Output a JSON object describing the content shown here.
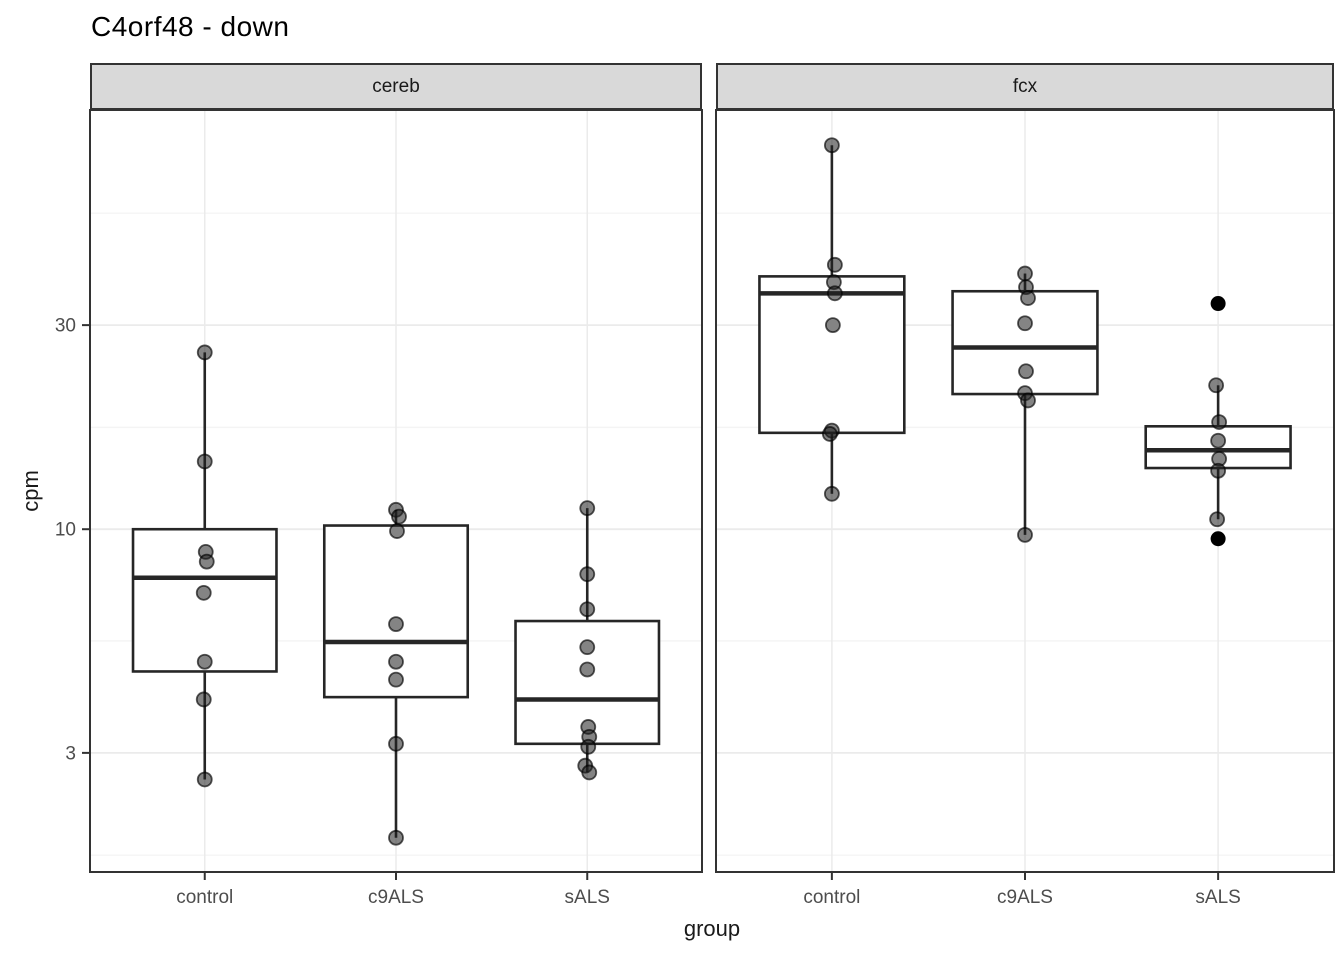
{
  "chart_data": {
    "type": "boxplot",
    "title": "C4orf48 - down",
    "xlabel": "group",
    "ylabel": "cpm",
    "y_scale": "log10",
    "y_domain": [
      1.58,
      95.5
    ],
    "y_major_ticks": [
      3,
      10,
      30
    ],
    "y_minor_gridlines": [
      1.73,
      5.48,
      17.3,
      54.8
    ],
    "categories": [
      "control",
      "c9ALS",
      "sALS"
    ],
    "grid": true,
    "legend": false,
    "facets": [
      {
        "label": "cereb",
        "groups": [
          {
            "category": "control",
            "box": {
              "q1": 4.65,
              "median": 7.7,
              "q3": 10.0,
              "whisker_low": 2.6,
              "whisker_high": 25.9
            },
            "points": [
              25.9,
              14.4,
              8.85,
              8.4,
              7.1,
              4.9,
              4.0,
              2.6
            ],
            "jitter_dx": [
              0,
              0,
              1,
              2,
              -1,
              0,
              -1,
              0
            ],
            "outliers": []
          },
          {
            "category": "c9ALS",
            "box": {
              "q1": 4.05,
              "median": 5.45,
              "q3": 10.2,
              "whisker_low": 1.9,
              "whisker_high": 11.1
            },
            "points": [
              11.1,
              10.7,
              9.9,
              6.0,
              4.9,
              4.45,
              3.15,
              1.9
            ],
            "jitter_dx": [
              0,
              3,
              1,
              0,
              0,
              0,
              0,
              0
            ],
            "outliers": []
          },
          {
            "category": "sALS",
            "box": {
              "q1": 3.15,
              "median": 4.0,
              "q3": 6.1,
              "whisker_low": 2.7,
              "whisker_high": 11.2
            },
            "points": [
              11.2,
              7.85,
              6.5,
              5.3,
              4.7,
              3.45,
              3.27,
              3.1,
              2.8,
              2.7
            ],
            "jitter_dx": [
              0,
              0,
              0,
              0,
              0,
              1,
              2,
              1,
              -2,
              2
            ],
            "outliers": []
          }
        ]
      },
      {
        "label": "fcx",
        "groups": [
          {
            "category": "control",
            "box": {
              "q1": 16.8,
              "median": 35.6,
              "q3": 39.0,
              "whisker_low": 12.1,
              "whisker_high": 79.0
            },
            "points": [
              79.0,
              41.5,
              37.8,
              35.6,
              30.0,
              17.0,
              16.7,
              12.1
            ],
            "jitter_dx": [
              0,
              3,
              2,
              3,
              1,
              0,
              -2,
              0
            ],
            "outliers": []
          },
          {
            "category": "c9ALS",
            "box": {
              "q1": 20.7,
              "median": 26.6,
              "q3": 36.0,
              "whisker_low": 9.7,
              "whisker_high": 39.6
            },
            "points": [
              39.6,
              36.8,
              34.7,
              30.3,
              23.4,
              20.8,
              20.0,
              9.7
            ],
            "jitter_dx": [
              0,
              1,
              3,
              0,
              1,
              0,
              3,
              0
            ],
            "outliers": []
          },
          {
            "category": "sALS",
            "box": {
              "q1": 13.9,
              "median": 15.3,
              "q3": 17.4,
              "whisker_low": 10.55,
              "whisker_high": 21.7
            },
            "points": [
              21.7,
              17.8,
              16.1,
              14.6,
              13.7,
              10.55
            ],
            "jitter_dx": [
              -2,
              1,
              0,
              1,
              0,
              -1
            ],
            "outliers": [
              33.7,
              9.5
            ]
          }
        ]
      }
    ],
    "colors": {
      "background": "#ffffff",
      "strip_bg": "#d9d9d9",
      "panel_border": "#333333",
      "grid_major": "#ebebeb",
      "grid_minor": "#f4f4f4",
      "box_stroke": "#262626",
      "box_fill": "#ffffff",
      "point_fill": "#1f1f1f",
      "outlier_color": "#000000",
      "axis_text": "#4d4d4d",
      "tick_mark": "#333333"
    }
  }
}
